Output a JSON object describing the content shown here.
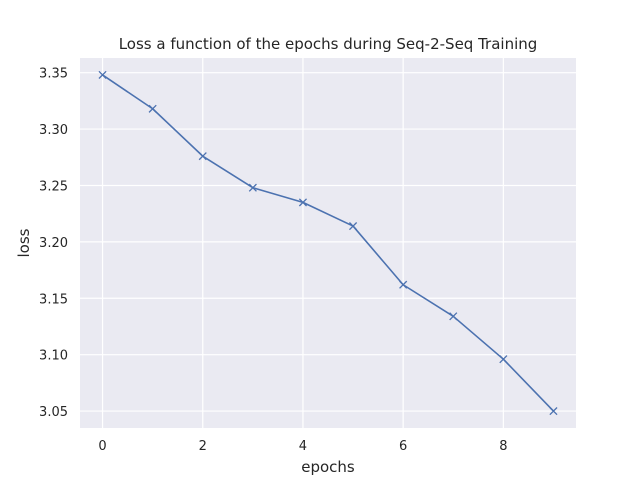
{
  "chart_data": {
    "type": "line",
    "title": "Loss a function of the epochs during Seq-2-Seq Training",
    "xlabel": "epochs",
    "ylabel": "loss",
    "xlim": [
      -0.45,
      9.45
    ],
    "ylim": [
      3.035,
      3.363
    ],
    "x_ticks": [
      0,
      2,
      4,
      6,
      8
    ],
    "y_ticks": [
      3.05,
      3.1,
      3.15,
      3.2,
      3.25,
      3.3,
      3.35
    ],
    "grid": true,
    "legend": "none",
    "marker": "x",
    "series": [
      {
        "color": "#4c72b0",
        "x": [
          0,
          1,
          2,
          3,
          4,
          5,
          6,
          7,
          8,
          9
        ],
        "y": [
          3.348,
          3.318,
          3.276,
          3.248,
          3.235,
          3.214,
          3.162,
          3.134,
          3.096,
          3.05
        ]
      }
    ]
  },
  "colors": {
    "plot_background": "#eaeaf2",
    "grid": "#ffffff",
    "text": "#262626"
  }
}
